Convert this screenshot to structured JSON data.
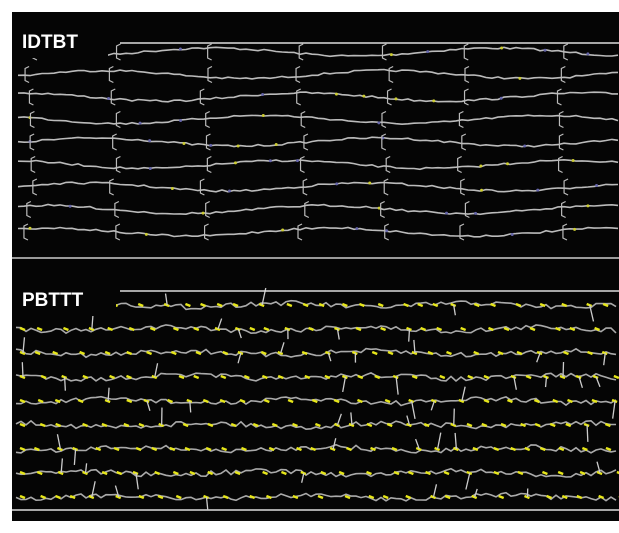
{
  "panels": [
    {
      "label": "IDTBT"
    },
    {
      "label": "PBTTT"
    }
  ]
}
